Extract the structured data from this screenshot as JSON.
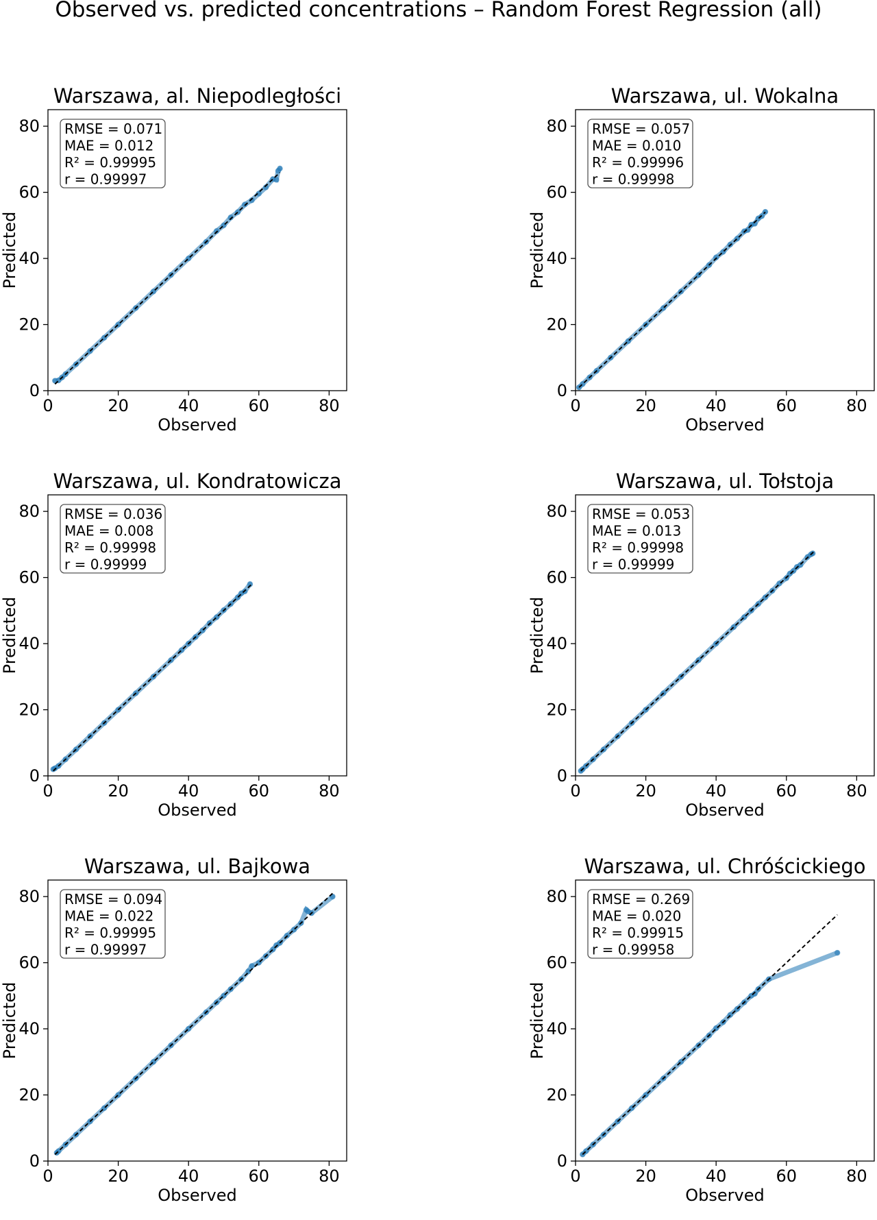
{
  "figure": {
    "title": "Observed vs. predicted concentrations – Random Forest Regression (all)"
  },
  "colors": {
    "point": "#1f77b4",
    "reference_line": "#000000",
    "axes": "#000000",
    "box_edge": "#555555"
  },
  "chart_data": [
    {
      "type": "scatter",
      "title": "Warszawa, al. Niepodległości",
      "xlabel": "Observed",
      "ylabel": "Predicted",
      "xlim": [
        0,
        85
      ],
      "ylim": [
        0,
        85
      ],
      "ticks": [
        0,
        20,
        40,
        60,
        80
      ],
      "reference_line": [
        [
          2,
          2
        ],
        [
          66,
          66
        ]
      ],
      "metrics": [
        "RMSE = 0.071",
        "MAE = 0.012",
        "R² = 0.99995",
        "r = 0.99997"
      ],
      "points": [
        [
          2,
          3
        ],
        [
          3,
          3.1
        ],
        [
          4,
          4
        ],
        [
          5,
          5
        ],
        [
          8,
          8
        ],
        [
          12,
          12
        ],
        [
          16,
          16
        ],
        [
          20,
          20
        ],
        [
          25,
          25
        ],
        [
          30,
          30
        ],
        [
          35,
          35
        ],
        [
          40,
          40
        ],
        [
          45,
          45
        ],
        [
          48,
          48.3
        ],
        [
          50,
          50
        ],
        [
          52,
          52.4
        ],
        [
          54,
          54
        ],
        [
          56,
          56.3
        ],
        [
          58,
          57.6
        ],
        [
          60,
          59.6
        ],
        [
          62,
          61.5
        ],
        [
          64,
          64
        ],
        [
          65,
          63.8
        ],
        [
          65.5,
          66.5
        ],
        [
          66,
          67.2
        ]
      ]
    },
    {
      "type": "scatter",
      "title": "Warszawa, ul. Wokalna",
      "xlabel": "Observed",
      "ylabel": "Predicted",
      "xlim": [
        0,
        85
      ],
      "ylim": [
        0,
        85
      ],
      "ticks": [
        0,
        20,
        40,
        60,
        80
      ],
      "reference_line": [
        [
          1,
          1
        ],
        [
          54,
          54
        ]
      ],
      "metrics": [
        "RMSE = 0.057",
        "MAE = 0.010",
        "R² = 0.99996",
        "r = 0.99998"
      ],
      "points": [
        [
          1,
          1
        ],
        [
          2,
          2
        ],
        [
          4,
          4
        ],
        [
          6,
          6
        ],
        [
          10,
          10
        ],
        [
          15,
          15
        ],
        [
          20,
          20
        ],
        [
          25,
          25
        ],
        [
          30,
          30
        ],
        [
          35,
          35
        ],
        [
          38,
          38
        ],
        [
          40,
          40.3
        ],
        [
          42,
          42
        ],
        [
          44,
          44.2
        ],
        [
          46,
          46
        ],
        [
          48,
          48.2
        ],
        [
          49,
          48.6
        ],
        [
          50,
          50.2
        ],
        [
          51,
          50.5
        ],
        [
          52,
          52.1
        ],
        [
          53,
          52.8
        ],
        [
          54,
          54.1
        ]
      ]
    },
    {
      "type": "scatter",
      "title": "Warszawa, ul. Kondratowicza",
      "xlabel": "Observed",
      "ylabel": "Predicted",
      "xlim": [
        0,
        85
      ],
      "ylim": [
        0,
        85
      ],
      "ticks": [
        0,
        20,
        40,
        60,
        80
      ],
      "reference_line": [
        [
          1.5,
          1.5
        ],
        [
          58,
          58
        ]
      ],
      "metrics": [
        "RMSE = 0.036",
        "MAE = 0.008",
        "R² = 0.99998",
        "r = 0.99999"
      ],
      "points": [
        [
          1.5,
          2
        ],
        [
          2,
          2.3
        ],
        [
          3,
          3
        ],
        [
          5,
          5
        ],
        [
          8,
          8
        ],
        [
          12,
          12
        ],
        [
          16,
          16
        ],
        [
          20,
          20
        ],
        [
          25,
          25
        ],
        [
          30,
          30
        ],
        [
          35,
          35
        ],
        [
          38,
          38
        ],
        [
          40,
          40
        ],
        [
          42,
          42
        ],
        [
          44,
          44
        ],
        [
          46,
          46.2
        ],
        [
          48,
          48
        ],
        [
          50,
          50.1
        ],
        [
          52,
          52
        ],
        [
          54,
          54
        ],
        [
          55,
          55.2
        ],
        [
          56,
          55.8
        ],
        [
          57.5,
          58
        ]
      ]
    },
    {
      "type": "scatter",
      "title": "Warszawa, ul. Tołstoja",
      "xlabel": "Observed",
      "ylabel": "Predicted",
      "xlim": [
        0,
        85
      ],
      "ylim": [
        0,
        85
      ],
      "ticks": [
        0,
        20,
        40,
        60,
        80
      ],
      "reference_line": [
        [
          1.5,
          1.5
        ],
        [
          68,
          68
        ]
      ],
      "metrics": [
        "RMSE = 0.053",
        "MAE = 0.013",
        "R² = 0.99998",
        "r = 0.99999"
      ],
      "points": [
        [
          1.5,
          1.5
        ],
        [
          2,
          2
        ],
        [
          3,
          3
        ],
        [
          5,
          5
        ],
        [
          8,
          8
        ],
        [
          12,
          12
        ],
        [
          16,
          16
        ],
        [
          20,
          20
        ],
        [
          25,
          25
        ],
        [
          30,
          30
        ],
        [
          35,
          35
        ],
        [
          40,
          40
        ],
        [
          45,
          45
        ],
        [
          48,
          48
        ],
        [
          50,
          50
        ],
        [
          52,
          52
        ],
        [
          54,
          54
        ],
        [
          56,
          56
        ],
        [
          58,
          58.2
        ],
        [
          60,
          59.8
        ],
        [
          61,
          61.2
        ],
        [
          62,
          62
        ],
        [
          63,
          63.2
        ],
        [
          64,
          63.8
        ],
        [
          66,
          66.2
        ],
        [
          67,
          67
        ],
        [
          67.5,
          67.3
        ]
      ]
    },
    {
      "type": "scatter",
      "title": "Warszawa, ul. Bajkowa",
      "xlabel": "Observed",
      "ylabel": "Predicted",
      "xlim": [
        0,
        85
      ],
      "ylim": [
        0,
        85
      ],
      "ticks": [
        0,
        20,
        40,
        60,
        80
      ],
      "reference_line": [
        [
          2,
          2
        ],
        [
          81,
          81
        ]
      ],
      "metrics": [
        "RMSE = 0.094",
        "MAE = 0.022",
        "R² = 0.99995",
        "r = 0.99997"
      ],
      "points": [
        [
          2.5,
          2.5
        ],
        [
          3,
          3
        ],
        [
          5,
          5
        ],
        [
          8,
          8
        ],
        [
          12,
          12
        ],
        [
          16,
          16
        ],
        [
          20,
          20
        ],
        [
          25,
          25
        ],
        [
          30,
          30
        ],
        [
          35,
          35
        ],
        [
          40,
          40
        ],
        [
          45,
          45
        ],
        [
          48,
          48
        ],
        [
          50,
          50
        ],
        [
          52,
          52
        ],
        [
          55,
          55
        ],
        [
          57,
          57.4
        ],
        [
          58,
          59
        ],
        [
          60,
          60
        ],
        [
          62,
          62
        ],
        [
          64,
          64
        ],
        [
          65,
          65.3
        ],
        [
          66,
          66
        ],
        [
          68,
          68.2
        ],
        [
          70,
          70
        ],
        [
          72,
          72
        ],
        [
          73.5,
          76
        ],
        [
          74,
          75.5
        ],
        [
          75,
          75
        ],
        [
          81,
          80
        ]
      ]
    },
    {
      "type": "scatter",
      "title": "Warszawa, ul. Chróścickiego",
      "xlabel": "Observed",
      "ylabel": "Predicted",
      "xlim": [
        0,
        85
      ],
      "ylim": [
        0,
        85
      ],
      "ticks": [
        0,
        20,
        40,
        60,
        80
      ],
      "reference_line": [
        [
          2,
          2
        ],
        [
          74.5,
          74.5
        ]
      ],
      "metrics": [
        "RMSE = 0.269",
        "MAE = 0.020",
        "R² = 0.99915",
        "r = 0.99958"
      ],
      "points": [
        [
          2,
          2
        ],
        [
          3,
          3
        ],
        [
          5,
          5
        ],
        [
          8,
          8
        ],
        [
          12,
          12
        ],
        [
          16,
          16
        ],
        [
          20,
          20
        ],
        [
          25,
          25
        ],
        [
          30,
          30
        ],
        [
          35,
          35
        ],
        [
          38,
          38
        ],
        [
          40,
          40.2
        ],
        [
          42,
          42
        ],
        [
          44,
          44.2
        ],
        [
          46,
          46
        ],
        [
          48,
          48
        ],
        [
          50,
          50
        ],
        [
          51,
          50.6
        ],
        [
          52,
          52
        ],
        [
          55,
          55
        ],
        [
          74.5,
          63
        ]
      ]
    }
  ]
}
